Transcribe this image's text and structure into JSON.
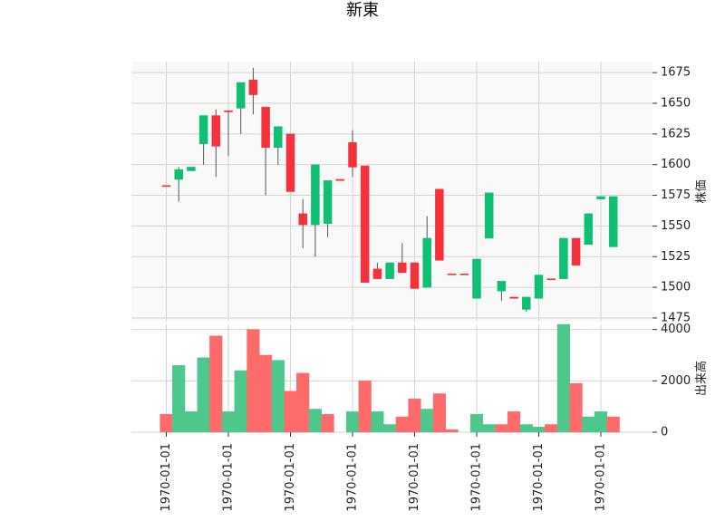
{
  "title": "新東",
  "chart_data": [
    {
      "type": "candlestick",
      "title": "新東",
      "ylabel": "株価",
      "ylim": [
        1472,
        1684
      ],
      "yticks": [
        1475,
        1500,
        1525,
        1550,
        1575,
        1600,
        1625,
        1650,
        1675
      ],
      "xticks": [
        "1970-01-01",
        "1970-01-01",
        "1970-01-01",
        "1970-01-01",
        "1970-01-01",
        "1970-01-01",
        "1970-01-01",
        "1970-01-01"
      ],
      "grid": true,
      "up_color": "#0fbf74",
      "down_color": "#f4323c",
      "candles": [
        {
          "open": 1583,
          "close": 1583,
          "high": 1583,
          "low": 1583
        },
        {
          "open": 1588,
          "close": 1596,
          "high": 1598,
          "low": 1570
        },
        {
          "open": 1595,
          "close": 1598,
          "high": 1598,
          "low": 1595
        },
        {
          "open": 1617,
          "close": 1640,
          "high": 1640,
          "low": 1600
        },
        {
          "open": 1640,
          "close": 1615,
          "high": 1645,
          "low": 1590
        },
        {
          "open": 1644,
          "close": 1643,
          "high": 1644,
          "low": 1607
        },
        {
          "open": 1646,
          "close": 1667,
          "high": 1667,
          "low": 1625
        },
        {
          "open": 1669,
          "close": 1657,
          "high": 1679,
          "low": 1641
        },
        {
          "open": 1647,
          "close": 1614,
          "high": 1647,
          "low": 1575
        },
        {
          "open": 1614,
          "close": 1631,
          "high": 1631,
          "low": 1600
        },
        {
          "open": 1625,
          "close": 1578,
          "high": 1625,
          "low": 1578
        },
        {
          "open": 1560,
          "close": 1551,
          "high": 1572,
          "low": 1532
        },
        {
          "open": 1551,
          "close": 1600,
          "high": 1600,
          "low": 1525
        },
        {
          "open": 1552,
          "close": 1587,
          "high": 1587,
          "low": 1541
        },
        {
          "open": 1588,
          "close": 1587,
          "high": 1588,
          "low": 1587
        },
        {
          "open": 1618,
          "close": 1598,
          "high": 1628,
          "low": 1590
        },
        {
          "open": 1599,
          "close": 1504,
          "high": 1599,
          "low": 1504
        },
        {
          "open": 1515,
          "close": 1507,
          "high": 1520,
          "low": 1507
        },
        {
          "open": 1507,
          "close": 1520,
          "high": 1520,
          "low": 1507
        },
        {
          "open": 1520,
          "close": 1512,
          "high": 1536,
          "low": 1512
        },
        {
          "open": 1520,
          "close": 1499,
          "high": 1520,
          "low": 1499
        },
        {
          "open": 1500,
          "close": 1540,
          "high": 1558,
          "low": 1500
        },
        {
          "open": 1580,
          "close": 1522,
          "high": 1580,
          "low": 1522
        },
        {
          "open": 1511,
          "close": 1511,
          "high": 1511,
          "low": 1511
        },
        {
          "open": 1511,
          "close": 1511,
          "high": 1511,
          "low": 1511
        },
        {
          "open": 1491,
          "close": 1523,
          "high": 1523,
          "low": 1491
        },
        {
          "open": 1540,
          "close": 1577,
          "high": 1577,
          "low": 1540
        },
        {
          "open": 1497,
          "close": 1505,
          "high": 1505,
          "low": 1489
        },
        {
          "open": 1492,
          "close": 1491,
          "high": 1492,
          "low": 1491
        },
        {
          "open": 1482,
          "close": 1492,
          "high": 1492,
          "low": 1480
        },
        {
          "open": 1491,
          "close": 1510,
          "high": 1510,
          "low": 1491
        },
        {
          "open": 1507,
          "close": 1507,
          "high": 1507,
          "low": 1507
        },
        {
          "open": 1507,
          "close": 1540,
          "high": 1540,
          "low": 1507
        },
        {
          "open": 1540,
          "close": 1518,
          "high": 1540,
          "low": 1518
        },
        {
          "open": 1535,
          "close": 1560,
          "high": 1560,
          "low": 1535
        },
        {
          "open": 1572,
          "close": 1574,
          "high": 1574,
          "low": 1572
        },
        {
          "open": 1533,
          "close": 1574,
          "high": 1574,
          "low": 1533
        }
      ]
    },
    {
      "type": "bar",
      "ylabel": "出来高",
      "ylim": [
        0,
        4200
      ],
      "yticks": [
        0,
        2000,
        4000
      ],
      "grid": true,
      "up_color": "#4ec78c",
      "down_color": "#ff6b6b",
      "volume": [
        700,
        2600,
        800,
        2900,
        3750,
        800,
        2400,
        4000,
        3000,
        2800,
        1600,
        2300,
        900,
        700,
        0,
        800,
        2000,
        800,
        300,
        600,
        1300,
        900,
        1500,
        100,
        0,
        700,
        300,
        300,
        800,
        300,
        200,
        300,
        4200,
        1900,
        600,
        800,
        600
      ],
      "direction": [
        "down",
        "up",
        "up",
        "up",
        "down",
        "up",
        "up",
        "down",
        "down",
        "up",
        "down",
        "down",
        "up",
        "down",
        "down",
        "up",
        "down",
        "up",
        "up",
        "down",
        "down",
        "up",
        "down",
        "down",
        "down",
        "up",
        "up",
        "down",
        "down",
        "up",
        "up",
        "down",
        "up",
        "down",
        "up",
        "up",
        "down"
      ]
    }
  ]
}
